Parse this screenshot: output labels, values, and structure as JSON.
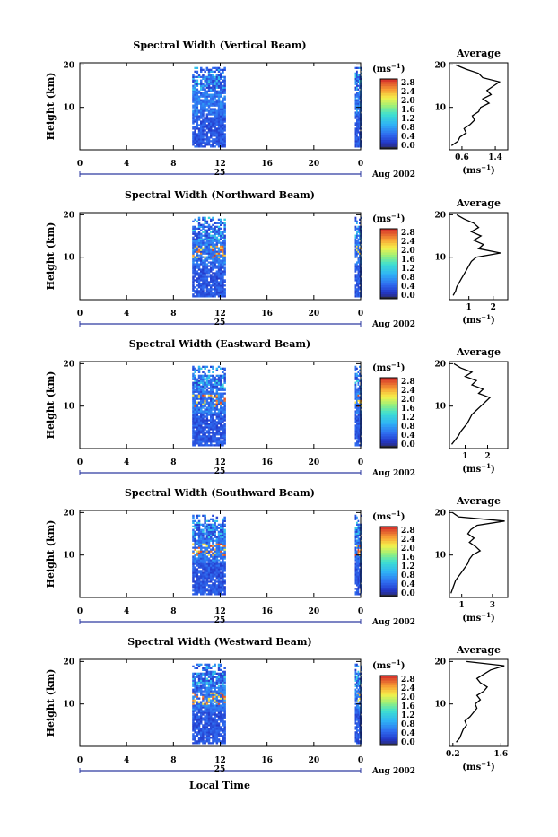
{
  "chart_data": [
    {
      "type": "heatmap",
      "title": "Spectral Width (Vertical Beam)",
      "ylabel": "Height (km)",
      "y_ticks": [
        "20",
        "10"
      ],
      "x_ticks": [
        "0",
        "4",
        "8",
        "12",
        "16",
        "20",
        "0"
      ],
      "date_label": "25",
      "month_label": "Aug 2002",
      "colorbar_title": "(ms",
      "colorbar_exp": "−1",
      "colorbar_ticks": [
        "0.0",
        "0.4",
        "0.8",
        "1.2",
        "1.6",
        "2.0",
        "2.4",
        "2.8"
      ],
      "colorbar_range": [
        0.0,
        2.8
      ],
      "data_hours": [
        [
          9.6,
          12.3
        ],
        [
          23.5,
          24.0
        ]
      ],
      "ylim": [
        0,
        20.5
      ],
      "xlim": [
        0,
        24
      ],
      "profile": {
        "title": "Average",
        "xlabel": "(ms",
        "xlabel_exp": "−1",
        "x_ticks": [
          "0.6",
          "1.4"
        ],
        "y_ticks": [
          "20",
          "10"
        ],
        "xlim": [
          0.3,
          1.7
        ],
        "height": [
          1,
          2,
          3,
          4,
          5,
          6,
          7,
          8,
          9,
          10,
          11,
          12,
          13,
          14,
          15,
          16,
          17,
          18,
          19,
          20
        ],
        "value": [
          0.35,
          0.5,
          0.55,
          0.7,
          0.65,
          0.8,
          0.9,
          0.85,
          1.0,
          1.05,
          1.25,
          1.1,
          1.3,
          1.2,
          1.35,
          1.5,
          1.1,
          1.0,
          0.7,
          0.45
        ]
      }
    },
    {
      "type": "heatmap",
      "title": "Spectral Width (Northward Beam)",
      "ylabel": "Height (km)",
      "y_ticks": [
        "20",
        "10"
      ],
      "x_ticks": [
        "0",
        "4",
        "8",
        "12",
        "16",
        "20",
        "0"
      ],
      "date_label": "25",
      "month_label": "Aug 2002",
      "colorbar_title": "(ms",
      "colorbar_exp": "−1",
      "colorbar_ticks": [
        "0.0",
        "0.4",
        "0.8",
        "1.2",
        "1.6",
        "2.0",
        "2.4",
        "2.8"
      ],
      "colorbar_range": [
        0.0,
        2.8
      ],
      "data_hours": [
        [
          9.6,
          12.3
        ],
        [
          23.5,
          24.0
        ]
      ],
      "ylim": [
        0,
        20.5
      ],
      "xlim": [
        0,
        24
      ],
      "profile": {
        "title": "Average",
        "xlabel": "(ms",
        "xlabel_exp": "−1",
        "x_ticks": [
          "1",
          "2"
        ],
        "y_ticks": [
          "20",
          "10"
        ],
        "xlim": [
          0.2,
          2.6
        ],
        "height": [
          1,
          2,
          3,
          4,
          5,
          6,
          7,
          8,
          9,
          10,
          11,
          12,
          13,
          14,
          15,
          16,
          17,
          18,
          19,
          20
        ],
        "value": [
          0.35,
          0.45,
          0.5,
          0.6,
          0.7,
          0.8,
          0.9,
          1.0,
          1.1,
          1.3,
          2.3,
          1.4,
          1.6,
          1.2,
          1.5,
          1.1,
          1.4,
          1.2,
          0.8,
          0.5
        ]
      }
    },
    {
      "type": "heatmap",
      "title": "Spectral Width (Eastward Beam)",
      "ylabel": "Height (km)",
      "y_ticks": [
        "20",
        "10"
      ],
      "x_ticks": [
        "0",
        "4",
        "8",
        "12",
        "16",
        "20",
        "0"
      ],
      "date_label": "25",
      "month_label": "Aug 2002",
      "colorbar_title": "(ms",
      "colorbar_exp": "−1",
      "colorbar_ticks": [
        "0.0",
        "0.4",
        "0.8",
        "1.2",
        "1.6",
        "2.0",
        "2.4",
        "2.8"
      ],
      "colorbar_range": [
        0.0,
        2.8
      ],
      "data_hours": [
        [
          9.6,
          12.3
        ],
        [
          23.5,
          24.0
        ]
      ],
      "ylim": [
        0,
        20.5
      ],
      "xlim": [
        0,
        24
      ],
      "profile": {
        "title": "Average",
        "xlabel": "(ms",
        "xlabel_exp": "−1",
        "x_ticks": [
          "1",
          "2"
        ],
        "y_ticks": [
          "20",
          "10"
        ],
        "xlim": [
          0.3,
          2.9
        ],
        "height": [
          1,
          2,
          3,
          4,
          5,
          6,
          7,
          8,
          9,
          10,
          11,
          12,
          13,
          14,
          15,
          16,
          17,
          18,
          19,
          20
        ],
        "value": [
          0.4,
          0.55,
          0.7,
          0.8,
          0.95,
          1.1,
          1.2,
          1.3,
          1.5,
          1.7,
          1.9,
          2.1,
          1.6,
          1.8,
          1.3,
          1.5,
          1.0,
          1.3,
          0.8,
          0.5
        ]
      }
    },
    {
      "type": "heatmap",
      "title": "Spectral Width (Southward Beam)",
      "ylabel": "Height (km)",
      "y_ticks": [
        "20",
        "10"
      ],
      "x_ticks": [
        "0",
        "4",
        "8",
        "12",
        "16",
        "20",
        "0"
      ],
      "date_label": "25",
      "month_label": "Aug 2002",
      "colorbar_title": "(ms",
      "colorbar_exp": "−1",
      "colorbar_ticks": [
        "0.0",
        "0.4",
        "0.8",
        "1.2",
        "1.6",
        "2.0",
        "2.4",
        "2.8"
      ],
      "colorbar_range": [
        0.0,
        2.8
      ],
      "data_hours": [
        [
          9.6,
          12.3
        ],
        [
          23.5,
          24.0
        ]
      ],
      "ylim": [
        0,
        20.5
      ],
      "xlim": [
        0,
        24
      ],
      "profile": {
        "title": "Average",
        "xlabel": "(ms",
        "xlabel_exp": "−1",
        "x_ticks": [
          "1",
          "3"
        ],
        "y_ticks": [
          "20",
          "10"
        ],
        "xlim": [
          0.2,
          4.0
        ],
        "height": [
          1,
          2,
          3,
          4,
          5,
          6,
          7,
          8,
          9,
          10,
          11,
          12,
          13,
          14,
          15,
          16,
          17,
          18,
          19,
          20
        ],
        "value": [
          0.3,
          0.4,
          0.5,
          0.6,
          0.8,
          1.0,
          1.2,
          1.4,
          1.5,
          1.7,
          2.2,
          1.9,
          1.5,
          1.8,
          1.4,
          1.6,
          2.0,
          3.8,
          0.8,
          0.4
        ]
      }
    },
    {
      "type": "heatmap",
      "title": "Spectral Width (Westward Beam)",
      "ylabel": "Height (km)",
      "y_ticks": [
        "20",
        "10"
      ],
      "x_ticks": [
        "0",
        "4",
        "8",
        "12",
        "16",
        "20",
        "0"
      ],
      "date_label": "25",
      "month_label": "Aug 2002",
      "colorbar_title": "(ms",
      "colorbar_exp": "−1",
      "colorbar_ticks": [
        "0.0",
        "0.4",
        "0.8",
        "1.2",
        "1.6",
        "2.0",
        "2.4",
        "2.8"
      ],
      "colorbar_range": [
        0.0,
        2.8
      ],
      "data_hours": [
        [
          9.6,
          12.3
        ],
        [
          23.5,
          24.0
        ]
      ],
      "ylim": [
        0,
        20.5
      ],
      "xlim": [
        0,
        24
      ],
      "profile": {
        "title": "Average",
        "xlabel": "(ms",
        "xlabel_exp": "−1",
        "x_ticks": [
          "0.2",
          "1.6"
        ],
        "y_ticks": [
          "20",
          "10"
        ],
        "xlim": [
          0.1,
          1.8
        ],
        "height": [
          1,
          2,
          3,
          4,
          5,
          6,
          7,
          8,
          9,
          10,
          11,
          12,
          13,
          14,
          15,
          16,
          17,
          18,
          19,
          20
        ],
        "value": [
          0.3,
          0.4,
          0.45,
          0.5,
          0.6,
          0.55,
          0.7,
          0.8,
          0.9,
          0.85,
          1.0,
          0.9,
          1.1,
          1.2,
          1.0,
          0.9,
          1.1,
          1.3,
          1.7,
          0.6
        ]
      }
    }
  ],
  "footer": {
    "xlabel": "Local Time"
  }
}
